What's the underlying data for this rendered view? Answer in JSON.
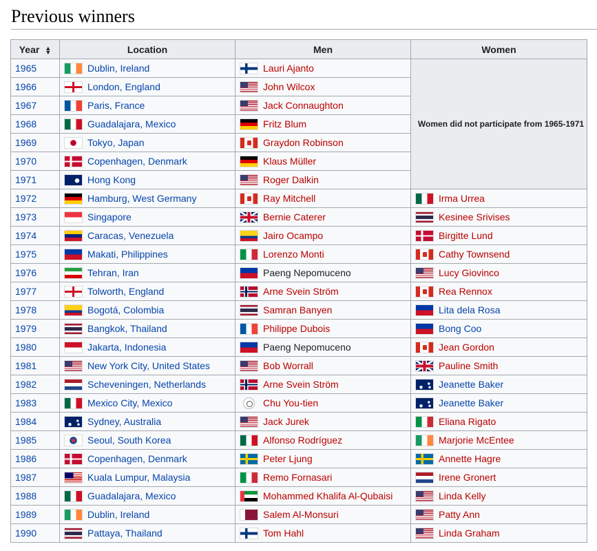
{
  "heading": "Previous winners",
  "table": {
    "headers": {
      "year": "Year",
      "location": "Location",
      "men": "Men",
      "women": "Women"
    },
    "women_note": "Women did not participate from 1965-1971",
    "rows": [
      {
        "year": "1965",
        "location": {
          "flag": "ie",
          "text": "Dublin, Ireland"
        },
        "men": {
          "flag": "fi",
          "text": "Lauri Ajanto",
          "link": "red"
        },
        "women": null
      },
      {
        "year": "1966",
        "location": {
          "flag": "en",
          "text": "London, England"
        },
        "men": {
          "flag": "us",
          "text": "John Wilcox",
          "link": "red"
        },
        "women": null
      },
      {
        "year": "1967",
        "location": {
          "flag": "fr",
          "text": "Paris, France"
        },
        "men": {
          "flag": "us",
          "text": "Jack Connaughton",
          "link": "red"
        },
        "women": null
      },
      {
        "year": "1968",
        "location": {
          "flag": "mx",
          "text": "Guadalajara, Mexico"
        },
        "men": {
          "flag": "de",
          "text": "Fritz Blum",
          "link": "red"
        },
        "women": null
      },
      {
        "year": "1969",
        "location": {
          "flag": "jp",
          "text": "Tokyo, Japan"
        },
        "men": {
          "flag": "ca",
          "text": "Graydon Robinson",
          "link": "red"
        },
        "women": null
      },
      {
        "year": "1970",
        "location": {
          "flag": "dk",
          "text": "Copenhagen, Denmark"
        },
        "men": {
          "flag": "de",
          "text": "Klaus Müller",
          "link": "red"
        },
        "women": null
      },
      {
        "year": "1971",
        "location": {
          "flag": "hk",
          "text": "Hong Kong"
        },
        "men": {
          "flag": "us",
          "text": "Roger Dalkin",
          "link": "red"
        },
        "women": null
      },
      {
        "year": "1972",
        "location": {
          "flag": "de",
          "text": "Hamburg, West Germany"
        },
        "men": {
          "flag": "ca",
          "text": "Ray Mitchell",
          "link": "red"
        },
        "women": {
          "flag": "mx",
          "text": "Irma Urrea",
          "link": "red"
        }
      },
      {
        "year": "1973",
        "location": {
          "flag": "sg",
          "text": "Singapore"
        },
        "men": {
          "flag": "gb",
          "text": "Bernie Caterer",
          "link": "red"
        },
        "women": {
          "flag": "th",
          "text": "Kesinee Srivises",
          "link": "red"
        }
      },
      {
        "year": "1974",
        "location": {
          "flag": "ve",
          "text": "Caracas, Venezuela"
        },
        "men": {
          "flag": "co",
          "text": "Jairo Ocampo",
          "link": "red"
        },
        "women": {
          "flag": "dk",
          "text": "Birgitte Lund",
          "link": "red"
        }
      },
      {
        "year": "1975",
        "location": {
          "flag": "ph",
          "text": "Makati, Philippines"
        },
        "men": {
          "flag": "it",
          "text": "Lorenzo Monti",
          "link": "red"
        },
        "women": {
          "flag": "ca",
          "text": "Cathy Townsend",
          "link": "red"
        }
      },
      {
        "year": "1976",
        "location": {
          "flag": "ir",
          "text": "Tehran, Iran"
        },
        "men": {
          "flag": "ph",
          "text": "Paeng Nepomuceno",
          "link": "dark"
        },
        "women": {
          "flag": "us",
          "text": "Lucy Giovinco",
          "link": "red"
        }
      },
      {
        "year": "1977",
        "location": {
          "flag": "en",
          "text": "Tolworth, England"
        },
        "men": {
          "flag": "no",
          "text": "Arne Svein Ström",
          "link": "red"
        },
        "women": {
          "flag": "ca",
          "text": "Rea Rennox",
          "link": "red"
        }
      },
      {
        "year": "1978",
        "location": {
          "flag": "co",
          "text": "Bogotá, Colombia"
        },
        "men": {
          "flag": "th",
          "text": "Samran Banyen",
          "link": "red"
        },
        "women": {
          "flag": "ph",
          "text": "Lita dela Rosa",
          "link": "blue"
        }
      },
      {
        "year": "1979",
        "location": {
          "flag": "th",
          "text": "Bangkok, Thailand"
        },
        "men": {
          "flag": "fr",
          "text": "Philippe Dubois",
          "link": "red"
        },
        "women": {
          "flag": "ph",
          "text": "Bong Coo",
          "link": "blue"
        }
      },
      {
        "year": "1980",
        "location": {
          "flag": "id",
          "text": "Jakarta, Indonesia"
        },
        "men": {
          "flag": "ph",
          "text": "Paeng Nepomuceno",
          "link": "dark"
        },
        "women": {
          "flag": "ca",
          "text": "Jean Gordon",
          "link": "red"
        }
      },
      {
        "year": "1981",
        "location": {
          "flag": "us",
          "text": "New York City, United States"
        },
        "men": {
          "flag": "us",
          "text": "Bob Worrall",
          "link": "red"
        },
        "women": {
          "flag": "gb",
          "text": "Pauline Smith",
          "link": "red"
        }
      },
      {
        "year": "1982",
        "location": {
          "flag": "nl",
          "text": "Scheveningen, Netherlands"
        },
        "men": {
          "flag": "no",
          "text": "Arne Svein Ström",
          "link": "red"
        },
        "women": {
          "flag": "au",
          "text": "Jeanette Baker",
          "link": "blue"
        }
      },
      {
        "year": "1983",
        "location": {
          "flag": "mx",
          "text": "Mexico City, Mexico"
        },
        "men": {
          "flag": "tw",
          "text": "Chu You-tien",
          "link": "red"
        },
        "women": {
          "flag": "au",
          "text": "Jeanette Baker",
          "link": "blue"
        }
      },
      {
        "year": "1984",
        "location": {
          "flag": "au",
          "text": "Sydney, Australia"
        },
        "men": {
          "flag": "us",
          "text": "Jack Jurek",
          "link": "red"
        },
        "women": {
          "flag": "it",
          "text": "Eliana Rigato",
          "link": "red"
        }
      },
      {
        "year": "1985",
        "location": {
          "flag": "kr",
          "text": "Seoul, South Korea"
        },
        "men": {
          "flag": "mx",
          "text": "Alfonso Rodríguez",
          "link": "red"
        },
        "women": {
          "flag": "ie",
          "text": "Marjorie McEntee",
          "link": "red"
        }
      },
      {
        "year": "1986",
        "location": {
          "flag": "dk",
          "text": "Copenhagen, Denmark"
        },
        "men": {
          "flag": "se",
          "text": "Peter Ljung",
          "link": "red"
        },
        "women": {
          "flag": "se",
          "text": "Annette Hagre",
          "link": "red"
        }
      },
      {
        "year": "1987",
        "location": {
          "flag": "my",
          "text": "Kuala Lumpur, Malaysia"
        },
        "men": {
          "flag": "it",
          "text": "Remo Fornasari",
          "link": "red"
        },
        "women": {
          "flag": "nl",
          "text": "Irene Gronert",
          "link": "red"
        }
      },
      {
        "year": "1988",
        "location": {
          "flag": "mx",
          "text": "Guadalajara, Mexico"
        },
        "men": {
          "flag": "ae",
          "text": "Mohammed Khalifa Al-Qubaisi",
          "link": "red"
        },
        "women": {
          "flag": "us",
          "text": "Linda Kelly",
          "link": "red"
        }
      },
      {
        "year": "1989",
        "location": {
          "flag": "ie",
          "text": "Dublin, Ireland"
        },
        "men": {
          "flag": "qa",
          "text": "Salem Al-Monsuri",
          "link": "red"
        },
        "women": {
          "flag": "us",
          "text": "Patty Ann",
          "link": "red"
        }
      },
      {
        "year": "1990",
        "location": {
          "flag": "th",
          "text": "Pattaya, Thailand"
        },
        "men": {
          "flag": "fi",
          "text": "Tom Hahl",
          "link": "red"
        },
        "women": {
          "flag": "us",
          "text": "Linda Graham",
          "link": "red"
        }
      }
    ]
  },
  "flag_names": {
    "ie": "ireland-flag-icon",
    "en": "england-flag-icon",
    "fr": "france-flag-icon",
    "mx": "mexico-flag-icon",
    "jp": "japan-flag-icon",
    "dk": "denmark-flag-icon",
    "hk": "hong-kong-flag-icon",
    "de": "germany-flag-icon",
    "sg": "singapore-flag-icon",
    "ve": "venezuela-flag-icon",
    "ph": "philippines-flag-icon",
    "ir": "iran-flag-icon",
    "co": "colombia-flag-icon",
    "th": "thailand-flag-icon",
    "id": "indonesia-flag-icon",
    "us": "united-states-flag-icon",
    "nl": "netherlands-flag-icon",
    "au": "australia-flag-icon",
    "kr": "south-korea-flag-icon",
    "se": "sweden-flag-icon",
    "my": "malaysia-flag-icon",
    "fi": "finland-flag-icon",
    "ca": "canada-flag-icon",
    "gb": "united-kingdom-flag-icon",
    "no": "norway-flag-icon",
    "it": "italy-flag-icon",
    "tw": "chinese-taipei-flag-icon",
    "ae": "uae-flag-icon",
    "qa": "qatar-flag-icon"
  },
  "colors": {
    "link_blue": "#0645ad",
    "link_red": "#ba0000",
    "header_bg": "#eaecf0",
    "border": "#a2a9b1"
  }
}
